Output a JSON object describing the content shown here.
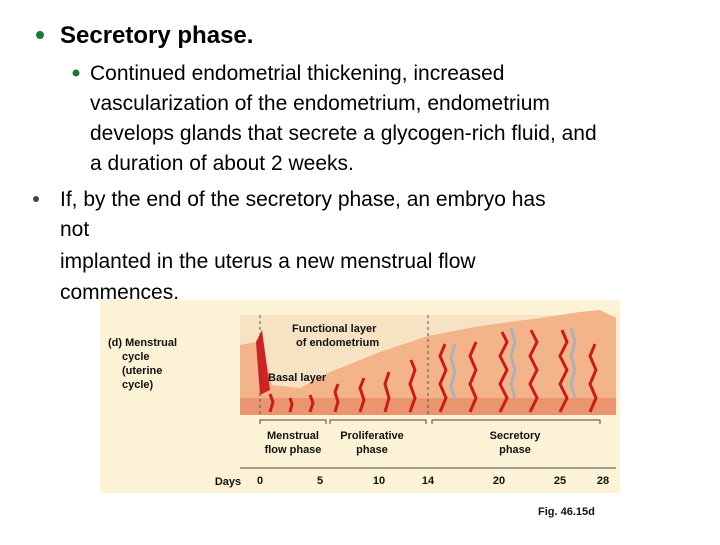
{
  "slide": {
    "bullet": {
      "title": "Secretory phase.",
      "sub": [
        "Continued endometrial thickening, increased",
        "vascularization of the endometrium, endometrium",
        "develops glands that secrete a glycogen-rich fluid, and",
        "a duration of about 2 weeks."
      ]
    },
    "bullet2": [
      "If, by the end of the secretory phase, an embryo has",
      "not",
      "implanted in the uterus a new menstrual flow",
      "commences."
    ],
    "figure": {
      "panel_label": [
        "(d) Menstrual",
        "cycle",
        "(uterine",
        "cycle)"
      ],
      "functional_layer": [
        "Functional layer",
        "of endometrium"
      ],
      "basal_layer": "Basal layer",
      "phases": [
        [
          "Menstrual",
          "flow phase"
        ],
        [
          "Proliferative",
          "phase"
        ],
        [
          "Secretory",
          "phase"
        ]
      ],
      "days_label": "Days",
      "days": [
        0,
        5,
        10,
        14,
        20,
        25,
        28
      ],
      "caption": "Fig. 46.15d"
    }
  }
}
